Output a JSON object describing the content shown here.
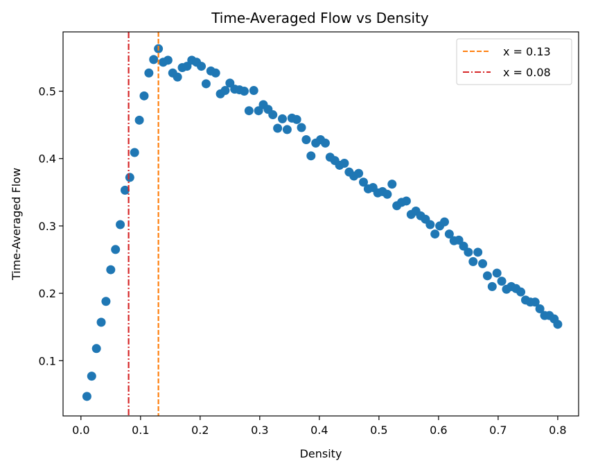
{
  "chart_data": {
    "type": "scatter",
    "title": "Time-Averaged Flow vs Density",
    "xlabel": "Density",
    "ylabel": "Time-Averaged Flow",
    "xlim": [
      -0.03,
      0.835
    ],
    "ylim": [
      0.018,
      0.588
    ],
    "xticks": [
      0.0,
      0.1,
      0.2,
      0.3,
      0.4,
      0.5,
      0.6,
      0.7,
      0.8
    ],
    "xtick_labels": [
      "0.0",
      "0.1",
      "0.2",
      "0.3",
      "0.4",
      "0.5",
      "0.6",
      "0.7",
      "0.8"
    ],
    "yticks": [
      0.1,
      0.2,
      0.3,
      0.4,
      0.5
    ],
    "ytick_labels": [
      "0.1",
      "0.2",
      "0.3",
      "0.4",
      "0.5"
    ],
    "grid": false,
    "legend_position": "top-right",
    "point_color": "#1f77b4",
    "series": [
      {
        "x": [
          0.01,
          0.018,
          0.026,
          0.034,
          0.042,
          0.05,
          0.058,
          0.066,
          0.074,
          0.082,
          0.09,
          0.098,
          0.106,
          0.114,
          0.122,
          0.13,
          0.138,
          0.146,
          0.154,
          0.162,
          0.17,
          0.178,
          0.186,
          0.194,
          0.202,
          0.21,
          0.218,
          0.226,
          0.234,
          0.242,
          0.25,
          0.258,
          0.266,
          0.274,
          0.282,
          0.29,
          0.298,
          0.306,
          0.314,
          0.322,
          0.33,
          0.338,
          0.346,
          0.354,
          0.362,
          0.37,
          0.378,
          0.386,
          0.394,
          0.402,
          0.41,
          0.418,
          0.426,
          0.434,
          0.442,
          0.45,
          0.458,
          0.466,
          0.474,
          0.482,
          0.49,
          0.498,
          0.506,
          0.514,
          0.522,
          0.53,
          0.538,
          0.546,
          0.554,
          0.562,
          0.57,
          0.578,
          0.586,
          0.594,
          0.602,
          0.61,
          0.618,
          0.626,
          0.634,
          0.642,
          0.65,
          0.658,
          0.666,
          0.674,
          0.682,
          0.69,
          0.698,
          0.706,
          0.714,
          0.722,
          0.73,
          0.738,
          0.746,
          0.754,
          0.762,
          0.77,
          0.778,
          0.786,
          0.794,
          0.8
        ],
        "y": [
          0.047,
          0.077,
          0.118,
          0.157,
          0.188,
          0.235,
          0.265,
          0.302,
          0.353,
          0.372,
          0.409,
          0.457,
          0.493,
          0.527,
          0.547,
          0.563,
          0.543,
          0.546,
          0.527,
          0.521,
          0.535,
          0.537,
          0.546,
          0.543,
          0.537,
          0.511,
          0.53,
          0.527,
          0.496,
          0.501,
          0.512,
          0.503,
          0.502,
          0.5,
          0.471,
          0.501,
          0.471,
          0.48,
          0.473,
          0.465,
          0.445,
          0.459,
          0.443,
          0.46,
          0.458,
          0.446,
          0.428,
          0.404,
          0.423,
          0.428,
          0.423,
          0.402,
          0.397,
          0.39,
          0.393,
          0.38,
          0.374,
          0.378,
          0.365,
          0.355,
          0.357,
          0.349,
          0.351,
          0.347,
          0.362,
          0.33,
          0.335,
          0.337,
          0.317,
          0.322,
          0.315,
          0.31,
          0.302,
          0.288,
          0.3,
          0.306,
          0.288,
          0.278,
          0.279,
          0.27,
          0.261,
          0.247,
          0.261,
          0.244,
          0.226,
          0.21,
          0.23,
          0.218,
          0.206,
          0.21,
          0.207,
          0.202,
          0.19,
          0.187,
          0.187,
          0.177,
          0.167,
          0.167,
          0.162,
          0.154
        ]
      }
    ],
    "vlines": [
      {
        "x": 0.13,
        "label": "x = 0.13",
        "color": "#ff7f0e",
        "style": "dashed"
      },
      {
        "x": 0.08,
        "label": "x = 0.08",
        "color": "#d62728",
        "style": "dashdot"
      }
    ]
  }
}
